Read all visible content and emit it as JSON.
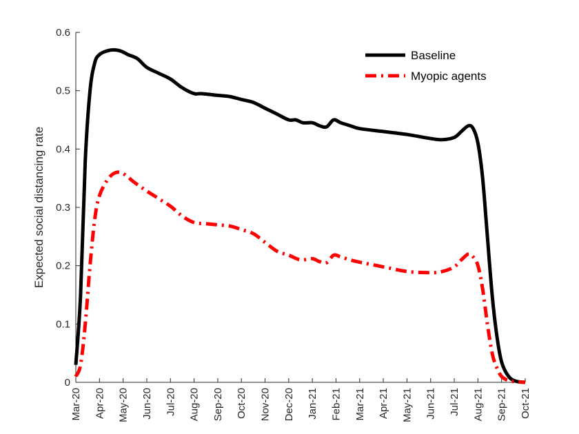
{
  "chart_data": {
    "type": "line",
    "title": "",
    "xlabel": "",
    "ylabel": "Expected social distancing rate",
    "ylim": [
      0,
      0.6
    ],
    "yticks": [
      "0",
      "0.1",
      "0.2",
      "0.3",
      "0.4",
      "0.5",
      "0.6"
    ],
    "xticks": [
      "Mar-20",
      "Apr-20",
      "May-20",
      "Jun-20",
      "Jul-20",
      "Aug-20",
      "Sep-20",
      "Oct-20",
      "Nov-20",
      "Dec-20",
      "Jan-21",
      "Feb-21",
      "Mar-21",
      "Apr-21",
      "May-21",
      "Jun-21",
      "Jul-21",
      "Aug-21",
      "Sep-21",
      "Oct-21"
    ],
    "x_units": "months since Mar-20 (tick index)",
    "legend_position": "top-right",
    "grid": false,
    "series": [
      {
        "name": "Baseline",
        "color": "#000000",
        "style": "solid",
        "points": [
          [
            0,
            0.03
          ],
          [
            0.2,
            0.15
          ],
          [
            0.4,
            0.38
          ],
          [
            0.6,
            0.5
          ],
          [
            0.8,
            0.548
          ],
          [
            1,
            0.562
          ],
          [
            1.3,
            0.568
          ],
          [
            1.6,
            0.57
          ],
          [
            1.9,
            0.568
          ],
          [
            2.2,
            0.562
          ],
          [
            2.6,
            0.555
          ],
          [
            3,
            0.54
          ],
          [
            3.5,
            0.53
          ],
          [
            4,
            0.52
          ],
          [
            4.5,
            0.505
          ],
          [
            5,
            0.495
          ],
          [
            5.3,
            0.495
          ],
          [
            6,
            0.492
          ],
          [
            6.5,
            0.49
          ],
          [
            7,
            0.485
          ],
          [
            7.5,
            0.48
          ],
          [
            8,
            0.47
          ],
          [
            8.5,
            0.46
          ],
          [
            9,
            0.45
          ],
          [
            9.3,
            0.45
          ],
          [
            9.6,
            0.445
          ],
          [
            10,
            0.445
          ],
          [
            10.3,
            0.44
          ],
          [
            10.6,
            0.438
          ],
          [
            10.9,
            0.45
          ],
          [
            11.2,
            0.445
          ],
          [
            11.6,
            0.44
          ],
          [
            12,
            0.435
          ],
          [
            13,
            0.43
          ],
          [
            14,
            0.425
          ],
          [
            15,
            0.418
          ],
          [
            15.5,
            0.416
          ],
          [
            16,
            0.42
          ],
          [
            16.3,
            0.43
          ],
          [
            16.6,
            0.44
          ],
          [
            16.8,
            0.435
          ],
          [
            17,
            0.41
          ],
          [
            17.2,
            0.35
          ],
          [
            17.4,
            0.25
          ],
          [
            17.6,
            0.15
          ],
          [
            17.8,
            0.08
          ],
          [
            18,
            0.035
          ],
          [
            18.3,
            0.01
          ],
          [
            18.6,
            0.002
          ],
          [
            19,
            0
          ]
        ]
      },
      {
        "name": "Myopic agents",
        "color": "#ff0000",
        "style": "dashdot",
        "points": [
          [
            0,
            0.01
          ],
          [
            0.2,
            0.03
          ],
          [
            0.4,
            0.1
          ],
          [
            0.6,
            0.2
          ],
          [
            0.8,
            0.28
          ],
          [
            1,
            0.32
          ],
          [
            1.3,
            0.345
          ],
          [
            1.6,
            0.358
          ],
          [
            1.9,
            0.36
          ],
          [
            2.2,
            0.352
          ],
          [
            2.5,
            0.342
          ],
          [
            3,
            0.328
          ],
          [
            3.5,
            0.315
          ],
          [
            4,
            0.302
          ],
          [
            4.5,
            0.285
          ],
          [
            5,
            0.274
          ],
          [
            5.5,
            0.272
          ],
          [
            6,
            0.27
          ],
          [
            6.5,
            0.268
          ],
          [
            7,
            0.262
          ],
          [
            7.5,
            0.255
          ],
          [
            8,
            0.24
          ],
          [
            8.5,
            0.225
          ],
          [
            9,
            0.218
          ],
          [
            9.5,
            0.21
          ],
          [
            10,
            0.212
          ],
          [
            10.3,
            0.207
          ],
          [
            10.6,
            0.205
          ],
          [
            10.9,
            0.218
          ],
          [
            11.2,
            0.215
          ],
          [
            11.6,
            0.21
          ],
          [
            12,
            0.206
          ],
          [
            13,
            0.198
          ],
          [
            14,
            0.19
          ],
          [
            15,
            0.188
          ],
          [
            15.5,
            0.19
          ],
          [
            16,
            0.198
          ],
          [
            16.3,
            0.21
          ],
          [
            16.6,
            0.22
          ],
          [
            16.8,
            0.215
          ],
          [
            17,
            0.2
          ],
          [
            17.2,
            0.16
          ],
          [
            17.4,
            0.1
          ],
          [
            17.6,
            0.05
          ],
          [
            17.8,
            0.025
          ],
          [
            18,
            0.01
          ],
          [
            18.3,
            0.003
          ],
          [
            18.6,
            0.001
          ],
          [
            19,
            0
          ]
        ]
      }
    ]
  }
}
